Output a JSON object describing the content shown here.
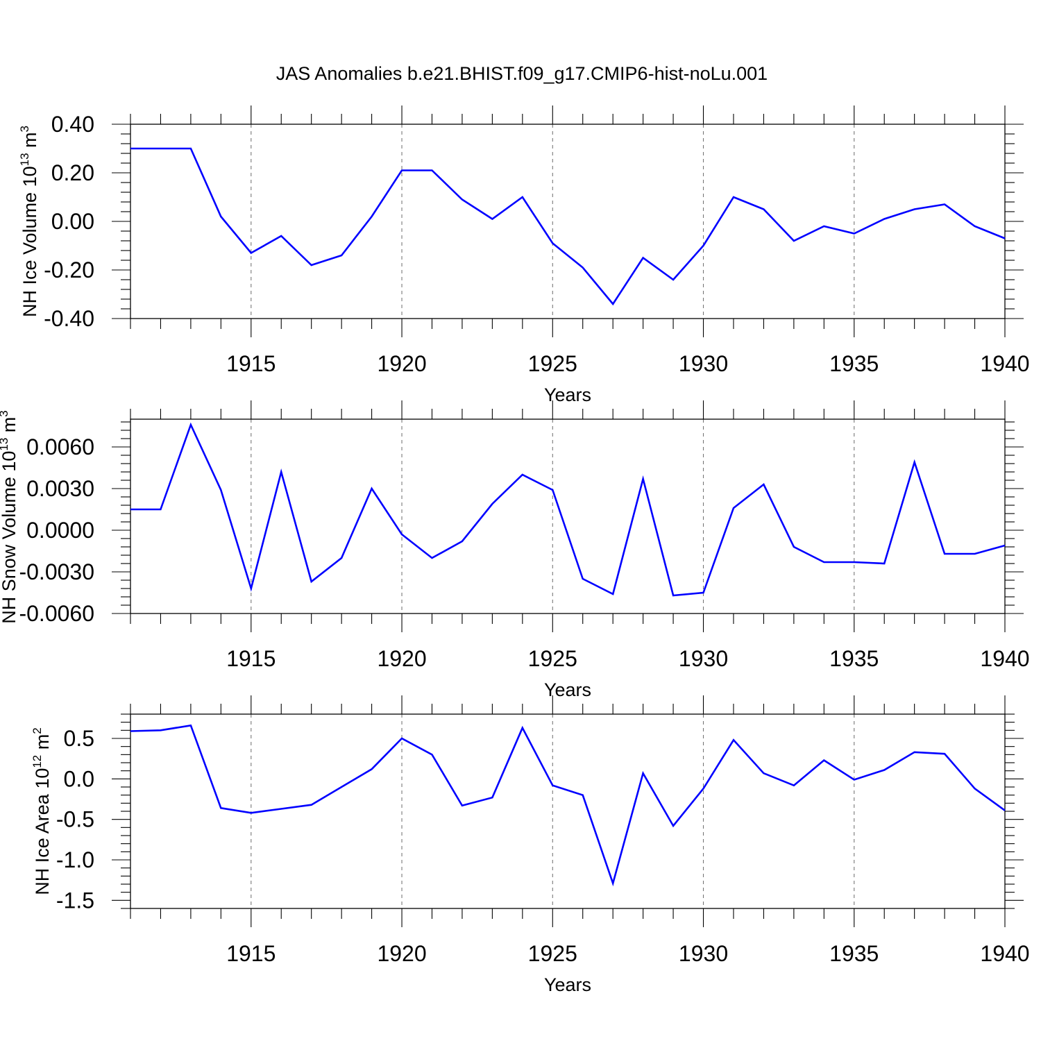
{
  "title": "JAS Anomalies b.e21.BHIST.f09_g17.CMIP6-hist-noLu.001",
  "chart_data": [
    {
      "type": "line",
      "ylabel": "NH Ice Volume 10",
      "ylabel_sup": "13",
      "ylabel_unit": " m",
      "ylabel_unit_sup": "3",
      "xlabel": "Years",
      "xlim": [
        1911,
        1940
      ],
      "ylim": [
        -0.4,
        0.4
      ],
      "xticks": [
        1915,
        1920,
        1925,
        1930,
        1935,
        1940
      ],
      "yticks": [
        -0.4,
        -0.2,
        0.0,
        0.2,
        0.4
      ],
      "ytick_labels": [
        "-0.40",
        "-0.20",
        "0.00",
        "0.20",
        "0.40"
      ],
      "grid": "vertical dashed at major x ticks",
      "color": "#0000ff",
      "x": [
        1911,
        1912,
        1913,
        1914,
        1915,
        1916,
        1917,
        1918,
        1919,
        1920,
        1921,
        1922,
        1923,
        1924,
        1925,
        1926,
        1927,
        1928,
        1929,
        1930,
        1931,
        1932,
        1933,
        1934,
        1935,
        1936,
        1937,
        1938,
        1939,
        1940
      ],
      "values": [
        0.3,
        0.3,
        0.3,
        0.02,
        -0.13,
        -0.06,
        -0.18,
        -0.14,
        0.02,
        0.21,
        0.21,
        0.09,
        0.01,
        0.1,
        -0.09,
        -0.19,
        -0.34,
        -0.15,
        -0.24,
        -0.1,
        0.1,
        0.05,
        -0.08,
        -0.02,
        -0.05,
        0.01,
        0.05,
        0.07,
        -0.02,
        -0.07
      ]
    },
    {
      "type": "line",
      "ylabel": "NH Snow Volume 10",
      "ylabel_sup": "13",
      "ylabel_unit": " m",
      "ylabel_unit_sup": "3",
      "xlabel": "Years",
      "xlim": [
        1911,
        1940
      ],
      "ylim": [
        -0.006,
        0.008
      ],
      "xticks": [
        1915,
        1920,
        1925,
        1930,
        1935,
        1940
      ],
      "yticks": [
        -0.006,
        -0.003,
        0.0,
        0.003,
        0.006
      ],
      "ytick_labels": [
        "-0.0060",
        "-0.0030",
        "0.0000",
        "0.0030",
        "0.0060"
      ],
      "grid": "vertical dashed at major x ticks",
      "color": "#0000ff",
      "x": [
        1911,
        1912,
        1913,
        1914,
        1915,
        1916,
        1917,
        1918,
        1919,
        1920,
        1921,
        1922,
        1923,
        1924,
        1925,
        1926,
        1927,
        1928,
        1929,
        1930,
        1931,
        1932,
        1933,
        1934,
        1935,
        1936,
        1937,
        1938,
        1939,
        1940
      ],
      "values": [
        0.0015,
        0.0015,
        0.0076,
        0.0029,
        -0.0042,
        0.0042,
        -0.0037,
        -0.002,
        0.003,
        -0.0003,
        -0.002,
        -0.0008,
        0.0019,
        0.004,
        0.0029,
        -0.0035,
        -0.0046,
        0.0037,
        -0.0047,
        -0.0045,
        0.0016,
        0.0033,
        -0.0012,
        -0.0023,
        -0.0023,
        -0.0024,
        0.0049,
        -0.0017,
        -0.0017,
        -0.0011
      ]
    },
    {
      "type": "line",
      "ylabel": "NH Ice Area 10",
      "ylabel_sup": "12",
      "ylabel_unit": " m",
      "ylabel_unit_sup": "2",
      "xlabel": "Years",
      "xlim": [
        1911,
        1940
      ],
      "ylim": [
        -1.6,
        0.8
      ],
      "xticks": [
        1915,
        1920,
        1925,
        1930,
        1935,
        1940
      ],
      "yticks": [
        -1.5,
        -1.0,
        -0.5,
        0.0,
        0.5
      ],
      "ytick_labels": [
        "-1.5",
        "-1.0",
        "-0.5",
        "0.0",
        "0.5"
      ],
      "grid": "vertical dashed at major x ticks",
      "color": "#0000ff",
      "x": [
        1911,
        1912,
        1913,
        1914,
        1915,
        1916,
        1917,
        1918,
        1919,
        1920,
        1921,
        1922,
        1923,
        1924,
        1925,
        1926,
        1927,
        1928,
        1929,
        1930,
        1931,
        1932,
        1933,
        1934,
        1935,
        1936,
        1937,
        1938,
        1939,
        1940
      ],
      "values": [
        0.59,
        0.6,
        0.66,
        -0.36,
        -0.42,
        -0.37,
        -0.32,
        -0.1,
        0.12,
        0.5,
        0.3,
        -0.33,
        -0.23,
        0.63,
        -0.08,
        -0.2,
        -1.29,
        0.07,
        -0.58,
        -0.12,
        0.48,
        0.07,
        -0.08,
        0.23,
        -0.01,
        0.11,
        0.33,
        0.31,
        -0.12,
        -0.39
      ]
    }
  ]
}
